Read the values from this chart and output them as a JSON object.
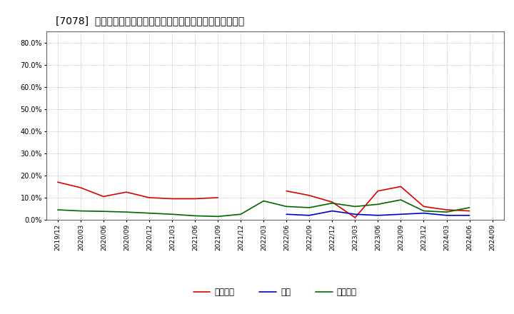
{
  "title": "[7078]  売上債権、在庫、買入債務の総資産に対する比率の推移",
  "dates": [
    "2019/12",
    "2020/03",
    "2020/06",
    "2020/09",
    "2020/12",
    "2021/03",
    "2021/06",
    "2021/09",
    "2021/12",
    "2022/03",
    "2022/06",
    "2022/09",
    "2022/12",
    "2023/03",
    "2023/06",
    "2023/09",
    "2023/12",
    "2024/03",
    "2024/06",
    "2024/09"
  ],
  "urikake": [
    0.17,
    0.145,
    0.105,
    0.125,
    0.1,
    0.095,
    0.095,
    0.1,
    null,
    null,
    0.13,
    0.11,
    0.08,
    0.01,
    0.13,
    0.15,
    0.06,
    0.045,
    0.04,
    null
  ],
  "zaiko": [
    null,
    null,
    null,
    null,
    null,
    null,
    null,
    null,
    null,
    null,
    0.025,
    0.02,
    0.04,
    0.025,
    0.02,
    0.025,
    0.03,
    0.02,
    0.02,
    null
  ],
  "kaiire": [
    0.045,
    0.04,
    0.038,
    0.035,
    0.03,
    0.025,
    0.018,
    0.015,
    0.025,
    0.085,
    0.06,
    0.055,
    0.075,
    0.06,
    0.07,
    0.09,
    0.04,
    0.035,
    0.055,
    null
  ],
  "urikake_color": "#dd0000",
  "zaiko_color": "#0000cc",
  "kaiire_color": "#006600",
  "ylim": [
    0.0,
    0.85
  ],
  "yticks": [
    0.0,
    0.1,
    0.2,
    0.3,
    0.4,
    0.5,
    0.6,
    0.7,
    0.8
  ],
  "legend_labels": [
    "売上債権",
    "在庫",
    "買入債務"
  ],
  "bg_color": "#ffffff",
  "grid_color": "#999999"
}
